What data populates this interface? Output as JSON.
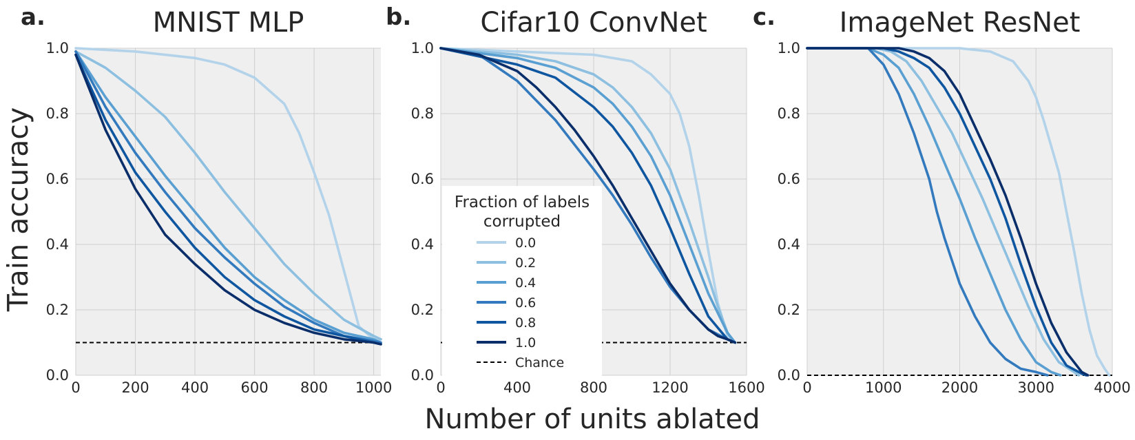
{
  "figure": {
    "ylabel": "Train accuracy",
    "xlabel": "Number of units ablated"
  },
  "colors": {
    "series": [
      "#b3d3ea",
      "#8dbfe0",
      "#5a9fd1",
      "#3279bd",
      "#0f56a0",
      "#0a2e6a"
    ],
    "chance": "#000000",
    "plot_bg": "#efefef",
    "grid": "#cfcfcf"
  },
  "legend": {
    "title_line1": "Fraction of labels",
    "title_line2": "corrupted",
    "labels": [
      "0.0",
      "0.2",
      "0.4",
      "0.6",
      "0.8",
      "1.0"
    ],
    "chance": "Chance",
    "placement": "center of panel b"
  },
  "chart_data": [
    {
      "type": "line",
      "panel_label": "a.",
      "title": "MNIST MLP",
      "xlim": [
        0,
        1024
      ],
      "ylim": [
        0,
        1.0
      ],
      "xticks": [
        0,
        200,
        400,
        600,
        800,
        1000
      ],
      "yticks": [
        0.0,
        0.2,
        0.4,
        0.6,
        0.8,
        1.0
      ],
      "ytick_labels": [
        "0.0",
        "0.2",
        "0.4",
        "0.6",
        "0.8",
        "1.0"
      ],
      "chance": 0.1,
      "grid": true,
      "series": [
        {
          "name": "0.0",
          "x": [
            0,
            200,
            400,
            500,
            600,
            700,
            750,
            800,
            850,
            900,
            950,
            1000,
            1024
          ],
          "y": [
            1.0,
            0.99,
            0.97,
            0.95,
            0.91,
            0.83,
            0.74,
            0.62,
            0.49,
            0.32,
            0.15,
            0.11,
            0.11
          ]
        },
        {
          "name": "0.2",
          "x": [
            0,
            100,
            200,
            300,
            400,
            500,
            600,
            700,
            800,
            900,
            1000,
            1024
          ],
          "y": [
            0.99,
            0.94,
            0.87,
            0.79,
            0.68,
            0.56,
            0.45,
            0.34,
            0.25,
            0.17,
            0.12,
            0.11
          ]
        },
        {
          "name": "0.4",
          "x": [
            0,
            100,
            200,
            300,
            400,
            500,
            600,
            700,
            800,
            900,
            1000,
            1024
          ],
          "y": [
            0.99,
            0.85,
            0.73,
            0.61,
            0.5,
            0.39,
            0.3,
            0.23,
            0.17,
            0.13,
            0.11,
            0.1
          ]
        },
        {
          "name": "0.6",
          "x": [
            0,
            100,
            200,
            300,
            400,
            500,
            600,
            700,
            800,
            900,
            1000,
            1024
          ],
          "y": [
            0.99,
            0.82,
            0.68,
            0.56,
            0.45,
            0.36,
            0.28,
            0.21,
            0.16,
            0.12,
            0.105,
            0.1
          ]
        },
        {
          "name": "0.8",
          "x": [
            0,
            100,
            200,
            300,
            400,
            500,
            600,
            700,
            800,
            900,
            1000,
            1024
          ],
          "y": [
            0.98,
            0.78,
            0.62,
            0.5,
            0.39,
            0.3,
            0.23,
            0.18,
            0.14,
            0.12,
            0.1,
            0.095
          ]
        },
        {
          "name": "1.0",
          "x": [
            0,
            100,
            200,
            300,
            400,
            500,
            600,
            700,
            800,
            900,
            1000,
            1024
          ],
          "y": [
            0.98,
            0.75,
            0.57,
            0.43,
            0.34,
            0.26,
            0.2,
            0.16,
            0.13,
            0.11,
            0.1,
            0.095
          ]
        }
      ]
    },
    {
      "type": "line",
      "panel_label": "b.",
      "title": "Cifar10 ConvNet",
      "xlim": [
        0,
        1600
      ],
      "ylim": [
        0,
        1.0
      ],
      "xticks": [
        0,
        400,
        800,
        1200,
        1600
      ],
      "yticks": [
        0.0,
        0.2,
        0.4,
        0.6,
        0.8,
        1.0
      ],
      "ytick_labels": [
        "0.0",
        "0.2",
        "0.4",
        "0.6",
        "0.8",
        "1.0"
      ],
      "chance": 0.1,
      "grid": true,
      "series": [
        {
          "name": "0.0",
          "x": [
            0,
            400,
            800,
            1000,
            1100,
            1200,
            1250,
            1300,
            1350,
            1400,
            1450,
            1500,
            1540
          ],
          "y": [
            1.0,
            0.99,
            0.98,
            0.96,
            0.92,
            0.86,
            0.8,
            0.7,
            0.55,
            0.38,
            0.22,
            0.12,
            0.1
          ]
        },
        {
          "name": "0.2",
          "x": [
            0,
            400,
            600,
            800,
            900,
            1000,
            1100,
            1200,
            1300,
            1400,
            1450,
            1500,
            1540
          ],
          "y": [
            1.0,
            0.98,
            0.96,
            0.92,
            0.88,
            0.82,
            0.74,
            0.63,
            0.47,
            0.3,
            0.21,
            0.13,
            0.1
          ]
        },
        {
          "name": "0.4",
          "x": [
            0,
            400,
            600,
            800,
            900,
            1000,
            1100,
            1200,
            1300,
            1400,
            1500,
            1540
          ],
          "y": [
            1.0,
            0.97,
            0.94,
            0.88,
            0.83,
            0.76,
            0.67,
            0.55,
            0.4,
            0.25,
            0.13,
            0.1
          ]
        },
        {
          "name": "0.6",
          "x": [
            0,
            200,
            400,
            600,
            800,
            900,
            1000,
            1100,
            1200,
            1300,
            1400,
            1500,
            1540
          ],
          "y": [
            1.0,
            0.98,
            0.9,
            0.78,
            0.63,
            0.55,
            0.46,
            0.36,
            0.27,
            0.2,
            0.14,
            0.11,
            0.1
          ]
        },
        {
          "name": "0.8",
          "x": [
            0,
            400,
            600,
            800,
            900,
            1000,
            1100,
            1200,
            1300,
            1400,
            1500,
            1540
          ],
          "y": [
            1.0,
            0.95,
            0.91,
            0.82,
            0.76,
            0.68,
            0.58,
            0.45,
            0.31,
            0.18,
            0.11,
            0.1
          ]
        },
        {
          "name": "1.0",
          "x": [
            0,
            200,
            400,
            500,
            600,
            700,
            800,
            900,
            1000,
            1100,
            1200,
            1300,
            1400,
            1450,
            1500,
            1540
          ],
          "y": [
            1.0,
            0.98,
            0.93,
            0.88,
            0.82,
            0.75,
            0.67,
            0.58,
            0.48,
            0.38,
            0.28,
            0.2,
            0.14,
            0.12,
            0.11,
            0.1
          ]
        }
      ]
    },
    {
      "type": "line",
      "panel_label": "c.",
      "title": "ImageNet ResNet",
      "xlim": [
        0,
        4000
      ],
      "ylim": [
        0,
        1.0
      ],
      "xticks": [
        0,
        1000,
        2000,
        3000,
        4000
      ],
      "yticks": [
        0.0,
        0.2,
        0.4,
        0.6,
        0.8,
        1.0
      ],
      "ytick_labels": [
        "0.0",
        "0.2",
        "0.4",
        "0.6",
        "0.8",
        "1.0"
      ],
      "chance": 0.0,
      "grid": true,
      "series": [
        {
          "name": "0.0",
          "x": [
            0,
            2000,
            2400,
            2700,
            2900,
            3000,
            3100,
            3200,
            3300,
            3400,
            3500,
            3600,
            3700,
            3800,
            3900,
            3960
          ],
          "y": [
            1.0,
            1.0,
            0.99,
            0.96,
            0.9,
            0.85,
            0.78,
            0.7,
            0.62,
            0.5,
            0.38,
            0.25,
            0.14,
            0.06,
            0.02,
            0.0
          ]
        },
        {
          "name": "0.2",
          "x": [
            0,
            900,
            1100,
            1300,
            1500,
            1700,
            1900,
            2100,
            2300,
            2500,
            2700,
            2900,
            3100,
            3300,
            3500,
            3560
          ],
          "y": [
            1.0,
            1.0,
            0.99,
            0.96,
            0.9,
            0.82,
            0.74,
            0.64,
            0.54,
            0.43,
            0.32,
            0.21,
            0.11,
            0.04,
            0.01,
            0.0
          ]
        },
        {
          "name": "0.4",
          "x": [
            0,
            800,
            1000,
            1200,
            1400,
            1600,
            1800,
            2000,
            2200,
            2400,
            2600,
            2800,
            3000,
            3200,
            3320
          ],
          "y": [
            1.0,
            1.0,
            0.98,
            0.94,
            0.86,
            0.76,
            0.65,
            0.54,
            0.42,
            0.31,
            0.2,
            0.11,
            0.04,
            0.01,
            0.0
          ]
        },
        {
          "name": "0.6",
          "x": [
            0,
            800,
            1000,
            1200,
            1400,
            1600,
            1700,
            1800,
            1900,
            2000,
            2200,
            2400,
            2600,
            2800,
            3000,
            3150
          ],
          "y": [
            1.0,
            1.0,
            0.95,
            0.86,
            0.74,
            0.6,
            0.5,
            0.42,
            0.35,
            0.28,
            0.18,
            0.1,
            0.05,
            0.02,
            0.01,
            0.0
          ]
        },
        {
          "name": "0.8",
          "x": [
            0,
            1000,
            1200,
            1400,
            1600,
            1800,
            2000,
            2200,
            2400,
            2600,
            2800,
            3000,
            3200,
            3400,
            3600,
            3660
          ],
          "y": [
            1.0,
            1.0,
            0.99,
            0.97,
            0.94,
            0.88,
            0.8,
            0.7,
            0.6,
            0.48,
            0.34,
            0.21,
            0.1,
            0.03,
            0.005,
            0.0
          ]
        },
        {
          "name": "1.0",
          "x": [
            0,
            1000,
            1200,
            1400,
            1600,
            1800,
            2000,
            2200,
            2400,
            2600,
            2800,
            3000,
            3200,
            3400,
            3600,
            3680
          ],
          "y": [
            1.0,
            1.0,
            1.0,
            0.99,
            0.97,
            0.93,
            0.86,
            0.76,
            0.66,
            0.55,
            0.42,
            0.28,
            0.16,
            0.07,
            0.01,
            0.0
          ]
        }
      ]
    }
  ]
}
